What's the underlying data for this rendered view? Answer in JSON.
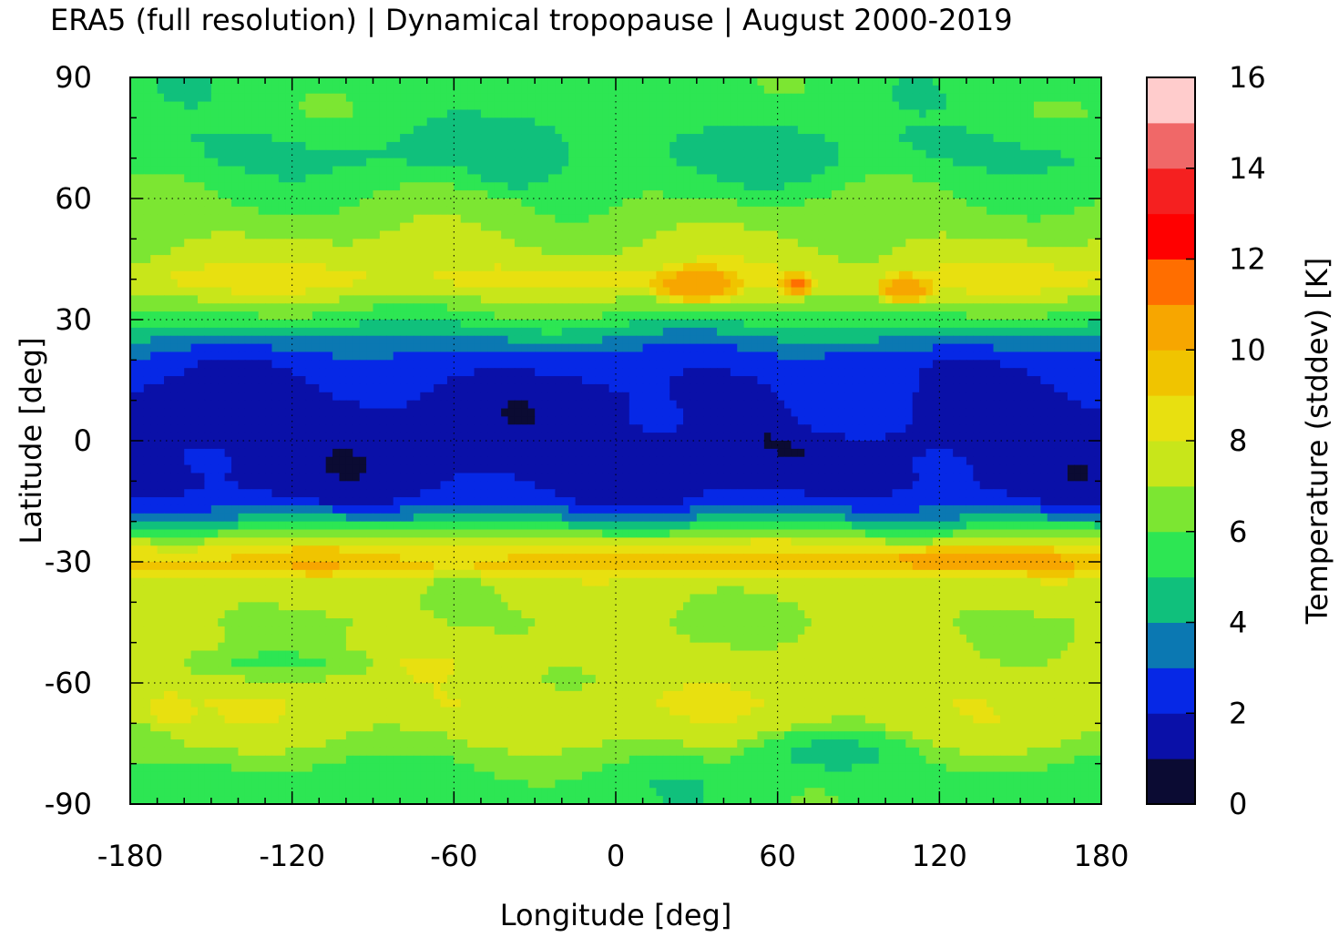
{
  "chart_data": {
    "type": "heatmap",
    "title": "ERA5 (full resolution) | Dynamical tropopause | August 2000-2019",
    "xlabel": "Longitude [deg]",
    "ylabel": "Latitude [deg]",
    "colorbar_label": "Temperature (stddev) [K]",
    "xlim": [
      -180,
      180
    ],
    "ylim": [
      -90,
      90
    ],
    "x_ticks": [
      "-180",
      "-120",
      "-60",
      "0",
      "60",
      "120",
      "180"
    ],
    "y_ticks": [
      "90",
      "60",
      "30",
      "0",
      "-30",
      "-60",
      "-90"
    ],
    "colorbar_ticks": [
      "16",
      "14",
      "12",
      "10",
      "8",
      "6",
      "4",
      "2",
      "0"
    ],
    "colorbar_range": [
      0,
      16
    ],
    "grid": true,
    "levels": [
      {
        "from": 0,
        "to": 1,
        "color": "#0b0b33"
      },
      {
        "from": 1,
        "to": 2,
        "color": "#0a10a8"
      },
      {
        "from": 2,
        "to": 3,
        "color": "#0628e6"
      },
      {
        "from": 3,
        "to": 4,
        "color": "#0b78b2"
      },
      {
        "from": 4,
        "to": 5,
        "color": "#10c07c"
      },
      {
        "from": 5,
        "to": 6,
        "color": "#2de653"
      },
      {
        "from": 6,
        "to": 7,
        "color": "#7ce632"
      },
      {
        "from": 7,
        "to": 8,
        "color": "#c8e61a"
      },
      {
        "from": 8,
        "to": 9,
        "color": "#e8e010"
      },
      {
        "from": 9,
        "to": 10,
        "color": "#f0c400"
      },
      {
        "from": 10,
        "to": 11,
        "color": "#f7a600"
      },
      {
        "from": 11,
        "to": 12,
        "color": "#ff6e00"
      },
      {
        "from": 12,
        "to": 13,
        "color": "#ff0000"
      },
      {
        "from": 13,
        "to": 14,
        "color": "#f52020"
      },
      {
        "from": 14,
        "to": 15,
        "color": "#f06868"
      },
      {
        "from": 15,
        "to": 16,
        "color": "#ffcccc"
      }
    ],
    "zonal_profile": {
      "lat": [
        90,
        85,
        80,
        75,
        70,
        65,
        60,
        55,
        50,
        45,
        40,
        35,
        30,
        25,
        20,
        15,
        10,
        5,
        0,
        -5,
        -10,
        -15,
        -20,
        -25,
        -28,
        -31,
        -35,
        -40,
        -45,
        -50,
        -55,
        -60,
        -65,
        -70,
        -75,
        -80,
        -85,
        -90
      ],
      "value": [
        5.5,
        5.5,
        5.5,
        5.0,
        4.8,
        5.5,
        6.0,
        6.5,
        7.0,
        7.5,
        8.5,
        7.0,
        5.5,
        3.8,
        2.5,
        2.0,
        1.6,
        1.5,
        1.4,
        1.5,
        1.6,
        2.2,
        4.5,
        7.5,
        9.0,
        9.5,
        7.5,
        7.2,
        7.0,
        7.2,
        7.5,
        7.5,
        7.8,
        7.5,
        7.0,
        6.0,
        5.5,
        5.5
      ]
    },
    "regional_features": [
      {
        "lon": [
          10,
          50
        ],
        "lat": [
          33,
          44
        ],
        "value": 11
      },
      {
        "lon": [
          60,
          75
        ],
        "lat": [
          35,
          42
        ],
        "value": 11.5
      },
      {
        "lon": [
          95,
          120
        ],
        "lat": [
          33,
          42
        ],
        "value": 11
      },
      {
        "lon": [
          80,
          175
        ],
        "lat": [
          -33,
          -26
        ],
        "value": 10.5
      },
      {
        "lon": [
          30,
          85
        ],
        "lat": [
          60,
          80
        ],
        "value": 4.6
      },
      {
        "lon": [
          -60,
          -15
        ],
        "lat": [
          60,
          82
        ],
        "value": 4.2
      },
      {
        "lon": [
          40,
          120
        ],
        "lat": [
          -85,
          -70
        ],
        "value": 4.7
      },
      {
        "lon": [
          -170,
          -80
        ],
        "lat": [
          -60,
          -50
        ],
        "value": 5.8
      },
      {
        "lon": [
          -175,
          -155
        ],
        "lat": [
          -72,
          -62
        ],
        "value": 9
      },
      {
        "lon": [
          50,
          120
        ],
        "lat": [
          -5,
          25
        ],
        "value": 2.5
      }
    ]
  }
}
